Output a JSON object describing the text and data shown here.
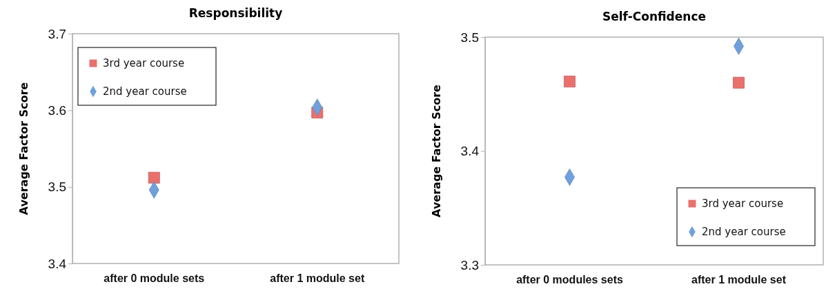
{
  "chart_data": [
    {
      "type": "scatter",
      "title": "Responsibility",
      "ylabel": "Average Factor Score",
      "categories": [
        "after 0 module sets",
        "after 1 module set"
      ],
      "ylim": [
        3.4,
        3.7
      ],
      "yticks": [
        3.4,
        3.5,
        3.6,
        3.7
      ],
      "grid": false,
      "legend": "top left",
      "series": [
        {
          "name": "3rd year course",
          "color": "#e8706d",
          "marker": "square",
          "values": [
            3.512,
            3.597
          ]
        },
        {
          "name": "2nd year course",
          "color": "#6fa0dc",
          "marker": "diamond",
          "values": [
            3.496,
            3.604
          ]
        }
      ]
    },
    {
      "type": "scatter",
      "title": "Self-Confidence",
      "ylabel": "Average Factor Score",
      "categories": [
        "after 0 modules sets",
        "after 1 module set"
      ],
      "ylim": [
        3.3,
        3.5
      ],
      "yticks": [
        3.3,
        3.4,
        3.5
      ],
      "grid": false,
      "legend": "bottom right",
      "series": [
        {
          "name": "3rd year course",
          "color": "#e8706d",
          "marker": "square",
          "values": [
            3.461,
            3.46
          ]
        },
        {
          "name": "2nd year course",
          "color": "#6fa0dc",
          "marker": "diamond",
          "values": [
            3.377,
            3.492
          ]
        }
      ]
    }
  ]
}
